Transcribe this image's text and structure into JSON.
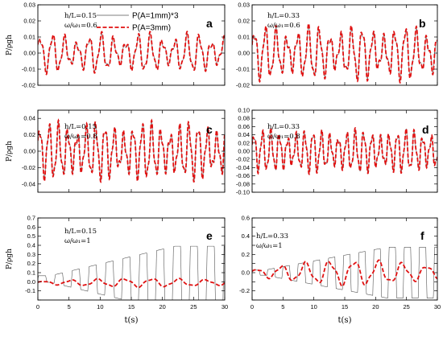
{
  "chart_data": [
    {
      "id": "a",
      "type": "line",
      "letter": "a",
      "annotation": [
        "h/L=0.15",
        "ω/ω₁=0.6"
      ],
      "ylabel": "P/ρgh",
      "xlabel": "",
      "ylim": [
        -0.02,
        0.03
      ],
      "yticks": [
        -0.02,
        -0.01,
        0.0,
        0.01,
        0.02,
        0.03
      ],
      "ytick_labels": [
        "-0.02",
        "-0.01",
        "0.00",
        "0.01",
        "0.02",
        "0.03"
      ],
      "xlim": [
        0,
        30
      ],
      "xticks": [
        0,
        5,
        10,
        15,
        20,
        25,
        30
      ],
      "xtick_labels": [],
      "series": [
        {
          "name": "P(A=1mm)*3",
          "style": "thin",
          "color": "#555555",
          "amp": 0.01,
          "omega": 3.2,
          "mod": 0.55,
          "growth": 0,
          "phase": 0.3
        },
        {
          "name": "P(A=3mm)",
          "style": "dashed",
          "color": "#e01010",
          "amp": 0.011,
          "omega": 3.2,
          "mod": 0.55,
          "growth": 0,
          "phase": 0.35
        }
      ]
    },
    {
      "id": "b",
      "type": "line",
      "letter": "b",
      "annotation": [
        "h/L=0.33",
        "ω/ω₁=0.6"
      ],
      "ylabel": "",
      "xlabel": "",
      "ylim": [
        -0.02,
        0.03
      ],
      "yticks": [
        -0.02,
        -0.01,
        0.0,
        0.01,
        0.02,
        0.03
      ],
      "ytick_labels": [
        "-0.02",
        "-0.01",
        "0.00",
        "0.01",
        "0.02",
        "0.03"
      ],
      "xlim": [
        0,
        30
      ],
      "xticks": [
        0,
        5,
        10,
        15,
        20,
        25,
        30
      ],
      "xtick_labels": [],
      "series": [
        {
          "name": "",
          "style": "thin",
          "color": "#555555",
          "amp": 0.014,
          "omega": 3.6,
          "mod": 0.5,
          "growth": 0,
          "phase": 0.1
        },
        {
          "name": "",
          "style": "dashed",
          "color": "#e01010",
          "amp": 0.015,
          "omega": 3.6,
          "mod": 0.5,
          "growth": 0,
          "phase": 0.15
        }
      ]
    },
    {
      "id": "c",
      "type": "line",
      "letter": "c",
      "annotation": [
        "h/L=0.15",
        "ω/ω₁=0.8"
      ],
      "ylabel": "P/ρgh",
      "xlabel": "",
      "ylim": [
        -0.05,
        0.05
      ],
      "yticks": [
        -0.04,
        -0.02,
        0.0,
        0.02,
        0.04
      ],
      "ytick_labels": [
        "-0.04",
        "-0.02",
        "0.00",
        "0.02",
        "0.04"
      ],
      "xlim": [
        0,
        30
      ],
      "xticks": [
        0,
        5,
        10,
        15,
        20,
        25,
        30
      ],
      "xtick_labels": [],
      "series": [
        {
          "name": "",
          "style": "thin",
          "color": "#555555",
          "amp": 0.03,
          "omega": 4.2,
          "mod": 0.45,
          "growth": 0,
          "phase": 0.2
        },
        {
          "name": "",
          "style": "dashed",
          "color": "#e01010",
          "amp": 0.031,
          "omega": 4.2,
          "mod": 0.45,
          "growth": 0,
          "phase": 0.25
        }
      ]
    },
    {
      "id": "d",
      "type": "line",
      "letter": "d",
      "annotation": [
        "h/L=0.33",
        "ω/ω₁=0.8"
      ],
      "ylabel": "",
      "xlabel": "",
      "ylim": [
        -0.1,
        0.1
      ],
      "yticks": [
        -0.1,
        -0.08,
        -0.06,
        -0.04,
        -0.02,
        0.0,
        0.02,
        0.04,
        0.06,
        0.08,
        0.1
      ],
      "ytick_labels": [
        "-0.10",
        "-0.08",
        "-0.06",
        "-0.04",
        "-0.02",
        "0.00",
        "0.02",
        "0.04",
        "0.06",
        "0.08",
        "0.10"
      ],
      "xlim": [
        0,
        30
      ],
      "xticks": [
        0,
        5,
        10,
        15,
        20,
        25,
        30
      ],
      "xtick_labels": [],
      "series": [
        {
          "name": "",
          "style": "thin",
          "color": "#555555",
          "amp": 0.045,
          "omega": 4.6,
          "mod": 0.4,
          "growth": 0,
          "phase": 0.1
        },
        {
          "name": "",
          "style": "dashed",
          "color": "#e01010",
          "amp": 0.046,
          "omega": 4.6,
          "mod": 0.4,
          "growth": 0,
          "phase": 0.15
        }
      ]
    },
    {
      "id": "e",
      "type": "line",
      "letter": "e",
      "annotation": [
        "h/L=0.15",
        "ω/ω₁=1"
      ],
      "ylabel": "P/ρgh",
      "xlabel": "t(s)",
      "ylim": [
        -0.2,
        0.7
      ],
      "yticks": [
        -0.2,
        -0.1,
        0.0,
        0.1,
        0.2,
        0.3,
        0.4,
        0.5,
        0.6,
        0.7
      ],
      "ytick_labels": [
        "",
        "-0.1",
        "0.0",
        "0.1",
        "0.2",
        "0.3",
        "0.4",
        "0.5",
        "0.6",
        "0.7"
      ],
      "xlim": [
        0,
        30
      ],
      "xticks": [
        0,
        5,
        10,
        15,
        20,
        25,
        30
      ],
      "xtick_labels": [
        "0",
        "5",
        "10",
        "15",
        "20",
        "25",
        "30"
      ],
      "series": [
        {
          "name": "",
          "style": "thin",
          "color": "#555555",
          "amp": 0.36,
          "omega": 1.45,
          "mod": 0,
          "growth": 1,
          "offset": 0.03,
          "phase": 0
        },
        {
          "name": "",
          "style": "dashed",
          "color": "#e01010",
          "amp": 0.06,
          "omega": 1.45,
          "mod": 0,
          "growth": 0.5,
          "offset": -0.01,
          "phase": 0.2
        }
      ]
    },
    {
      "id": "f",
      "type": "line",
      "letter": "f",
      "annotation": [
        "h/L=0.33",
        "ω/ω₁=1"
      ],
      "ylabel": "",
      "xlabel": "t(s)",
      "ylim": [
        -0.3,
        0.6
      ],
      "yticks": [
        -0.3,
        -0.2,
        -0.1,
        0.0,
        0.1,
        0.2,
        0.3,
        0.4,
        0.5,
        0.6
      ],
      "ytick_labels": [
        "",
        "-0.2",
        "",
        "0.0",
        "",
        "0.2",
        "",
        "0.4",
        "",
        "0.6"
      ],
      "xlim": [
        0,
        30
      ],
      "xticks": [
        0,
        5,
        10,
        15,
        20,
        25,
        30
      ],
      "xtick_labels": [
        "0",
        "5",
        "10",
        "15",
        "20",
        "25",
        "30"
      ],
      "series": [
        {
          "name": "",
          "style": "thin",
          "color": "#555555",
          "amp": 0.28,
          "omega": 1.6,
          "mod": 0,
          "growth": 1,
          "offset": 0.0,
          "phase": 0
        },
        {
          "name": "",
          "style": "dashed",
          "color": "#e01010",
          "amp": 0.14,
          "omega": 1.6,
          "mod": 0,
          "growth": 0.7,
          "offset": 0.0,
          "phase": 0.3
        }
      ]
    }
  ],
  "legend": {
    "items": [
      {
        "label": "P(A=1mm)*3",
        "style": "thin",
        "color": "#555555"
      },
      {
        "label": "P(A=3mm)",
        "style": "dashed",
        "color": "#e01010"
      }
    ]
  }
}
